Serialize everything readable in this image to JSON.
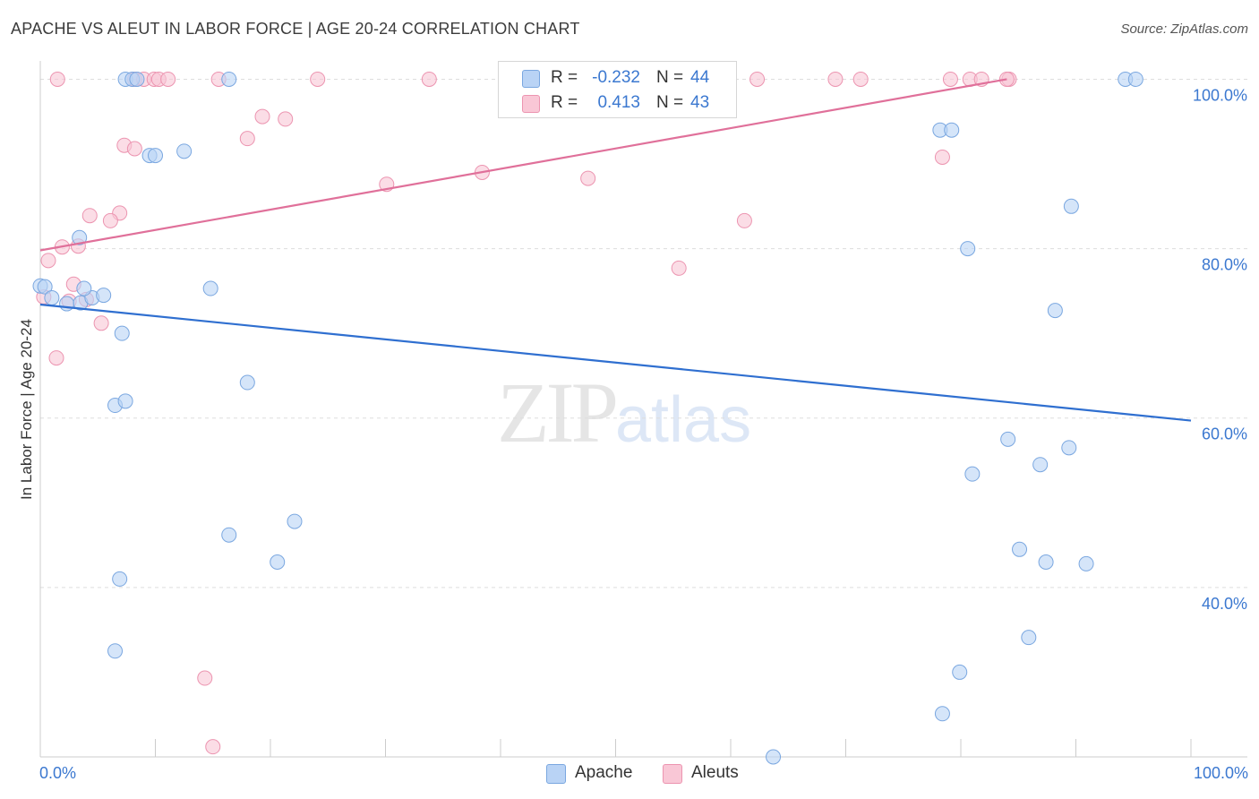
{
  "header": {
    "title": "APACHE VS ALEUT IN LABOR FORCE | AGE 20-24 CORRELATION CHART",
    "source": "Source: ZipAtlas.com"
  },
  "watermark": {
    "zip": "ZIP",
    "atlas": "atlas"
  },
  "legend": {
    "rows": [
      {
        "r_label": "R =",
        "r_value": "-0.232",
        "n_label": "N =",
        "n_value": "44"
      },
      {
        "r_label": "R =",
        "r_value": "0.413",
        "n_label": "N =",
        "n_value": "43"
      }
    ]
  },
  "bottom_legend": {
    "apache": "Apache",
    "aleuts": "Aleuts"
  },
  "colors": {
    "apache_fill": "#b9d3f5",
    "apache_stroke": "#7aa7e0",
    "apache_line": "#2f6fd0",
    "aleuts_fill": "#f9c7d6",
    "aleuts_stroke": "#ec94b0",
    "aleuts_line": "#e0709a",
    "tick_text": "#3b78d0",
    "grid": "#dddddd"
  },
  "chart_data": {
    "type": "scatter",
    "title": "APACHE VS ALEUT IN LABOR FORCE | AGE 20-24 CORRELATION CHART",
    "xlabel": "",
    "ylabel": "In Labor Force | Age 20-24",
    "xlim": [
      0,
      100
    ],
    "ylim": [
      20,
      101
    ],
    "x_tick_labels": [
      "0.0%",
      "100.0%"
    ],
    "y_ticks": [
      40,
      60,
      80,
      100
    ],
    "y_tick_labels": [
      "40.0%",
      "60.0%",
      "80.0%",
      "100.0%"
    ],
    "grid": true,
    "legend_position": "top-center",
    "series": [
      {
        "name": "Apache",
        "r": -0.232,
        "n": 44,
        "trend": {
          "x": [
            0,
            100
          ],
          "y": [
            73.4,
            59.7
          ]
        },
        "points": [
          [
            0,
            75.6
          ],
          [
            0.4,
            75.5
          ],
          [
            1.0,
            74.2
          ],
          [
            2.3,
            73.5
          ],
          [
            3.4,
            81.3
          ],
          [
            3.5,
            73.6
          ],
          [
            4.5,
            74.2
          ],
          [
            3.8,
            75.3
          ],
          [
            5.5,
            74.5
          ],
          [
            7.1,
            70.0
          ],
          [
            6.5,
            61.5
          ],
          [
            7.4,
            62.0
          ],
          [
            6.5,
            32.5
          ],
          [
            6.9,
            41.0
          ],
          [
            7.4,
            100
          ],
          [
            8.0,
            100
          ],
          [
            8.4,
            100
          ],
          [
            9.5,
            91.0
          ],
          [
            10.0,
            91.0
          ],
          [
            12.5,
            91.5
          ],
          [
            14.8,
            75.3
          ],
          [
            16.4,
            46.2
          ],
          [
            18.0,
            64.2
          ],
          [
            20.6,
            43.0
          ],
          [
            22.1,
            47.8
          ],
          [
            63.7,
            20.0
          ],
          [
            78.2,
            94.0
          ],
          [
            79.2,
            94.0
          ],
          [
            78.4,
            25.1
          ],
          [
            79.9,
            30.0
          ],
          [
            80.6,
            80.0
          ],
          [
            81.0,
            53.4
          ],
          [
            84.1,
            57.5
          ],
          [
            85.1,
            44.5
          ],
          [
            85.9,
            34.1
          ],
          [
            86.9,
            54.5
          ],
          [
            87.4,
            43.0
          ],
          [
            88.2,
            72.7
          ],
          [
            89.4,
            56.5
          ],
          [
            89.6,
            85.0
          ],
          [
            90.9,
            42.8
          ],
          [
            94.3,
            100
          ],
          [
            95.2,
            100
          ],
          [
            16.4,
            100
          ]
        ]
      },
      {
        "name": "Aleuts",
        "r": 0.413,
        "n": 43,
        "trend": {
          "x": [
            0,
            84
          ],
          "y": [
            79.8,
            100
          ]
        },
        "points": [
          [
            0.3,
            74.3
          ],
          [
            0.7,
            78.6
          ],
          [
            1.4,
            67.1
          ],
          [
            1.9,
            80.2
          ],
          [
            2.5,
            73.8
          ],
          [
            2.9,
            75.8
          ],
          [
            3.3,
            80.3
          ],
          [
            4.0,
            74.0
          ],
          [
            4.3,
            83.9
          ],
          [
            5.3,
            71.2
          ],
          [
            6.9,
            84.2
          ],
          [
            6.1,
            83.3
          ],
          [
            7.3,
            92.2
          ],
          [
            8.2,
            91.8
          ],
          [
            8.2,
            100
          ],
          [
            9.0,
            100
          ],
          [
            9.9,
            100
          ],
          [
            10.3,
            100
          ],
          [
            11.1,
            100
          ],
          [
            14.3,
            29.3
          ],
          [
            15.0,
            21.2
          ],
          [
            15.5,
            100
          ],
          [
            18.0,
            93.0
          ],
          [
            19.3,
            95.6
          ],
          [
            21.3,
            95.3
          ],
          [
            24.1,
            100
          ],
          [
            30.1,
            87.6
          ],
          [
            33.8,
            100
          ],
          [
            38.4,
            89.0
          ],
          [
            47.6,
            88.3
          ],
          [
            55.5,
            77.7
          ],
          [
            58.6,
            100
          ],
          [
            61.2,
            83.3
          ],
          [
            62.3,
            100
          ],
          [
            69.1,
            100
          ],
          [
            71.3,
            100
          ],
          [
            79.1,
            100
          ],
          [
            78.4,
            90.8
          ],
          [
            80.8,
            100
          ],
          [
            81.8,
            100
          ],
          [
            84.2,
            100
          ],
          [
            84.0,
            100
          ],
          [
            1.5,
            100
          ]
        ]
      }
    ]
  }
}
